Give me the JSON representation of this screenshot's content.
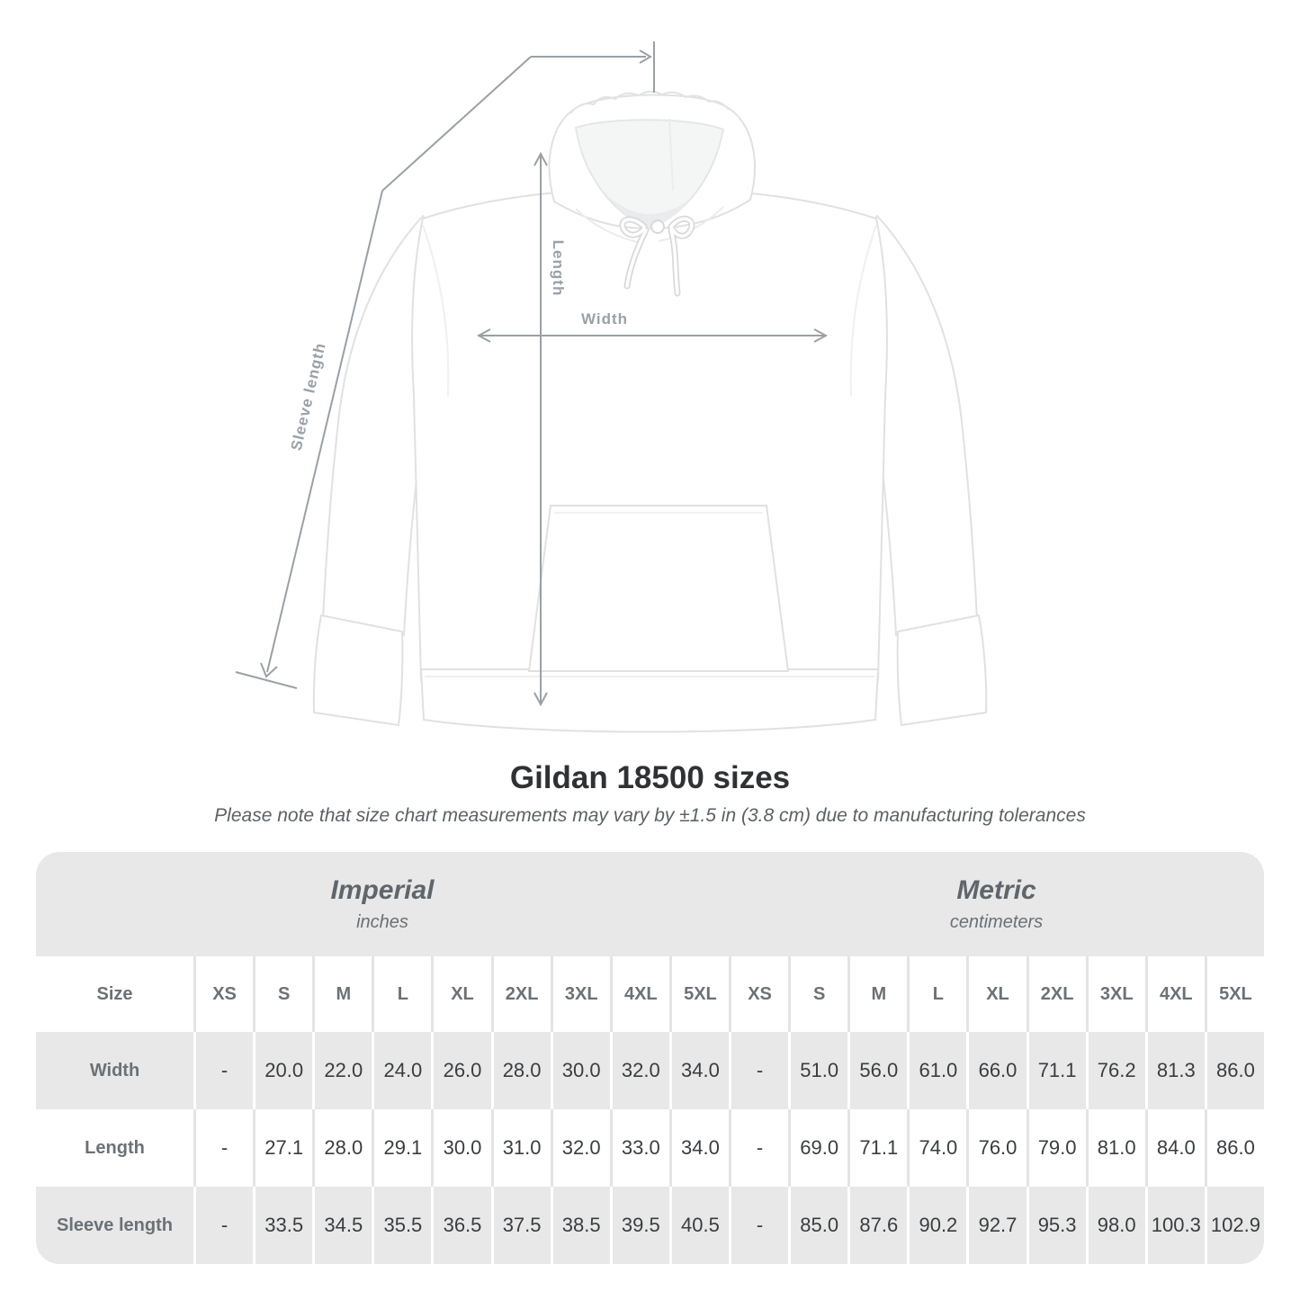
{
  "title": "Gildan 18500 sizes",
  "subtitle": "Please note that size chart measurements may vary by ±1.5 in (3.8 cm) due to manufacturing tolerances",
  "diagram": {
    "length_label": "Length",
    "width_label": "Width",
    "sleeve_label": "Sleeve length"
  },
  "colors": {
    "band_gray": "#e8e8e8",
    "label_text": "#6b7176",
    "value_text": "#3a3d3f",
    "arrow_gray": "#9aa0a6"
  },
  "chart_data": {
    "type": "table",
    "title": "Gildan 18500 sizes",
    "size_label": "Size",
    "sizes": [
      "XS",
      "S",
      "M",
      "L",
      "XL",
      "2XL",
      "3XL",
      "4XL",
      "5XL"
    ],
    "groups": [
      {
        "name": "Imperial",
        "unit": "inches"
      },
      {
        "name": "Metric",
        "unit": "centimeters"
      }
    ],
    "rows": [
      {
        "label": "Width",
        "imperial": [
          "-",
          "20.0",
          "22.0",
          "24.0",
          "26.0",
          "28.0",
          "30.0",
          "32.0",
          "34.0"
        ],
        "metric": [
          "-",
          "51.0",
          "56.0",
          "61.0",
          "66.0",
          "71.1",
          "76.2",
          "81.3",
          "86.0"
        ]
      },
      {
        "label": "Length",
        "imperial": [
          "-",
          "27.1",
          "28.0",
          "29.1",
          "30.0",
          "31.0",
          "32.0",
          "33.0",
          "34.0"
        ],
        "metric": [
          "-",
          "69.0",
          "71.1",
          "74.0",
          "76.0",
          "79.0",
          "81.0",
          "84.0",
          "86.0"
        ]
      },
      {
        "label": "Sleeve length",
        "imperial": [
          "-",
          "33.5",
          "34.5",
          "35.5",
          "36.5",
          "37.5",
          "38.5",
          "39.5",
          "40.5"
        ],
        "metric": [
          "-",
          "85.0",
          "87.6",
          "90.2",
          "92.7",
          "95.3",
          "98.0",
          "100.3",
          "102.9"
        ]
      }
    ]
  }
}
